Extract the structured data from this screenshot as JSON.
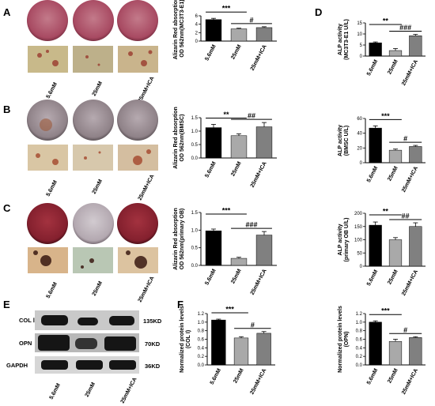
{
  "panels": {
    "A": "A",
    "B": "B",
    "C": "C",
    "D": "D",
    "E": "E",
    "F": "F"
  },
  "dish_conditions": [
    "5.6mM",
    "25mM",
    "25mM+ICA"
  ],
  "blot": {
    "rows": [
      "COL Ⅰ",
      "OPN",
      "GAPDH"
    ],
    "sizes": [
      "135KD",
      "70KD",
      "36KD"
    ]
  },
  "chart_data": [
    {
      "type": "bar",
      "panel": "A",
      "categories": [
        "5.6mM",
        "25mM",
        "25mM+ICA"
      ],
      "values": [
        5.1,
        2.9,
        3.2
      ],
      "errors": [
        0.3,
        0.15,
        0.2
      ],
      "ylabel": "Alizarin Red absorption\nOD 562nm(MC3T3-E1)",
      "ylim": [
        0,
        6
      ],
      "yticks": [
        "0",
        "2",
        "4",
        "6"
      ],
      "annotations": [
        {
          "text": "***",
          "from": 0,
          "to": 1
        },
        {
          "text": "#",
          "from": 1,
          "to": 2
        }
      ]
    },
    {
      "type": "bar",
      "panel": "D-top",
      "categories": [
        "5.6mM",
        "25mM",
        "25mM+ICA"
      ],
      "values": [
        6.0,
        2.5,
        9.2
      ],
      "errors": [
        0.4,
        0.9,
        0.6
      ],
      "ylabel": "ALP activity\n(MC3T3-E1 U/L)",
      "ylim": [
        0,
        15
      ],
      "yticks": [
        "0",
        "5",
        "10",
        "15"
      ],
      "annotations": [
        {
          "text": "**",
          "from": 0,
          "to": 1
        },
        {
          "text": "###",
          "from": 1,
          "to": 2
        }
      ]
    },
    {
      "type": "bar",
      "panel": "B",
      "categories": [
        "5.6mM",
        "25mM",
        "25mM+ICA"
      ],
      "values": [
        1.13,
        0.83,
        1.16
      ],
      "errors": [
        0.12,
        0.07,
        0.16
      ],
      "ylabel": "Alizarin Red absorption\nOD 562nm(BMSC)",
      "ylim": [
        0,
        1.5
      ],
      "yticks": [
        "0.0",
        "0.5",
        "1.0",
        "1.5"
      ],
      "annotations": [
        {
          "text": "**",
          "from": 0,
          "to": 1
        },
        {
          "text": "##",
          "from": 1,
          "to": 2
        }
      ]
    },
    {
      "type": "bar",
      "panel": "D-middle",
      "categories": [
        "5.6mM",
        "25mM",
        "25mM+ICA"
      ],
      "values": [
        47,
        17,
        22
      ],
      "errors": [
        3,
        1.5,
        1.5
      ],
      "ylabel": "ALP activity\n(BMSC U/L)",
      "ylim": [
        0,
        60
      ],
      "yticks": [
        "0",
        "20",
        "40",
        "60"
      ],
      "annotations": [
        {
          "text": "***",
          "from": 0,
          "to": 1
        },
        {
          "text": "#",
          "from": 1,
          "to": 2
        }
      ]
    },
    {
      "type": "bar",
      "panel": "C",
      "categories": [
        "5.6mM",
        "25mM",
        "25mM+ICA"
      ],
      "values": [
        0.98,
        0.2,
        0.86
      ],
      "errors": [
        0.05,
        0.03,
        0.1
      ],
      "ylabel": "Alizarin Red absorption\nOD 562nm(primary OB)",
      "ylim": [
        0,
        1.5
      ],
      "yticks": [
        "0.0",
        "0.5",
        "1.0",
        "1.5"
      ],
      "annotations": [
        {
          "text": "***",
          "from": 0,
          "to": 1
        },
        {
          "text": "###",
          "from": 1,
          "to": 2
        }
      ]
    },
    {
      "type": "bar",
      "panel": "D-bottom",
      "categories": [
        "5.6mM",
        "25mM",
        "25mM+ICA"
      ],
      "values": [
        155,
        100,
        150
      ],
      "errors": [
        12,
        8,
        14
      ],
      "ylabel": "ALP activity\n(primary OB U/L)",
      "ylim": [
        0,
        200
      ],
      "yticks": [
        "0",
        "50",
        "100",
        "150",
        "200"
      ],
      "annotations": [
        {
          "text": "**",
          "from": 0,
          "to": 1
        },
        {
          "text": "##",
          "from": 1,
          "to": 2
        }
      ]
    },
    {
      "type": "bar",
      "panel": "F-left",
      "categories": [
        "5.6mM",
        "25mM",
        "25mM+ICA"
      ],
      "values": [
        1.05,
        0.63,
        0.74
      ],
      "errors": [
        0.02,
        0.03,
        0.04
      ],
      "ylabel": "Normalized protein levels\n(COL Ⅰ)",
      "ylim": [
        0,
        1.2
      ],
      "yticks": [
        "0.0",
        "0.2",
        "0.4",
        "0.6",
        "0.8",
        "1.0",
        "1.2"
      ],
      "annotations": [
        {
          "text": "***",
          "from": 0,
          "to": 1
        },
        {
          "text": "#",
          "from": 1,
          "to": 2
        }
      ]
    },
    {
      "type": "bar",
      "panel": "F-right",
      "categories": [
        "5.6mM",
        "25mM",
        "25mM+ICA"
      ],
      "values": [
        1.0,
        0.55,
        0.64
      ],
      "errors": [
        0.03,
        0.05,
        0.02
      ],
      "ylabel": "Normalized protein levels\n(OPN)",
      "ylim": [
        0,
        1.2
      ],
      "yticks": [
        "0.0",
        "0.2",
        "0.4",
        "0.6",
        "0.8",
        "1.0",
        "1.2"
      ],
      "annotations": [
        {
          "text": "***",
          "from": 0,
          "to": 1
        },
        {
          "text": "#",
          "from": 1,
          "to": 2
        }
      ]
    }
  ],
  "colors": {
    "bars": [
      "#000000",
      "#a9a9a9",
      "#808080"
    ],
    "dish_A": "#b0546a",
    "dish_B": "#9a8e94",
    "dish_C": "#8d2433",
    "blot_bg": "#cfcfcf"
  }
}
